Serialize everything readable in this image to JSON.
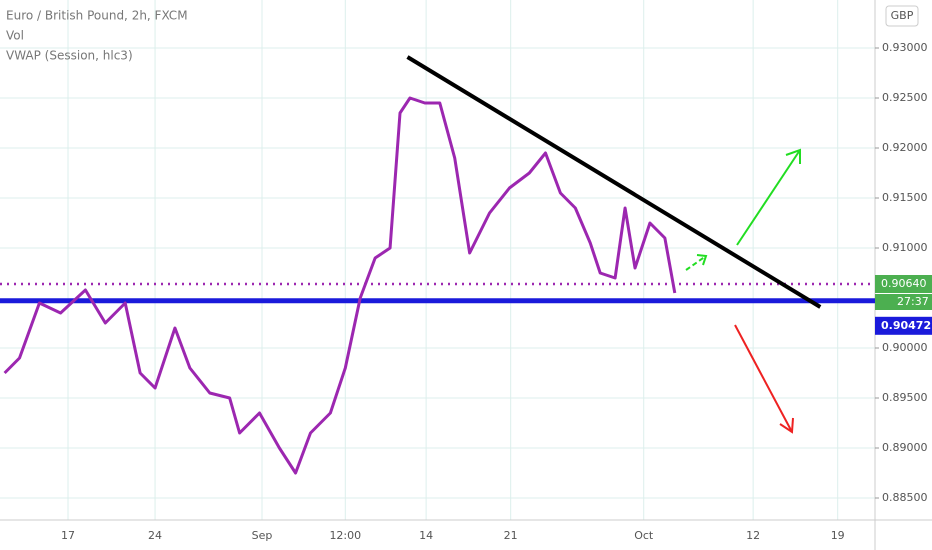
{
  "chart_data": {
    "type": "line",
    "title": "Euro / British Pound, 2h, FXCM",
    "indicators": [
      "Vol",
      "VWAP (Session, hlc3)"
    ],
    "currency": "GBP",
    "x": [
      1.9,
      3.1,
      4.7,
      6.4,
      8.4,
      10.0,
      11.6,
      12.8,
      14.0,
      15.6,
      16.8,
      18.4,
      20.0,
      20.8,
      22.4,
      24.0,
      25.3,
      26.5,
      28.1,
      29.3,
      30.5,
      31.7,
      32.9,
      33.7,
      34.5,
      35.7,
      36.9,
      38.1,
      39.3,
      40.9,
      42.5,
      44.1,
      45.4,
      46.6,
      47.8,
      49.0,
      49.8,
      51.0,
      51.8,
      52.6,
      53.8,
      55.0,
      55.8
    ],
    "series": [
      {
        "name": "VWAP (Session, hlc3)",
        "color": "#9c27b0",
        "values": [
          0.8975,
          0.899,
          0.9045,
          0.9035,
          0.9058,
          0.9025,
          0.9045,
          0.8975,
          0.896,
          0.902,
          0.898,
          0.8955,
          0.895,
          0.8915,
          0.8935,
          0.89,
          0.8875,
          0.8915,
          0.8935,
          0.898,
          0.905,
          0.909,
          0.91,
          0.9235,
          0.925,
          0.9245,
          0.9245,
          0.919,
          0.9095,
          0.9135,
          0.916,
          0.9175,
          0.9195,
          0.9155,
          0.914,
          0.9105,
          0.9075,
          0.907,
          0.914,
          0.908,
          0.9125,
          0.911,
          0.9055
        ]
      }
    ],
    "xlim": [
      1.53,
      71.9
    ],
    "xticks": [
      {
        "value": 7,
        "label": "17"
      },
      {
        "value": 14,
        "label": "24"
      },
      {
        "value": 22.6,
        "label": "Sep"
      },
      {
        "value": 29.3,
        "label": "12:00"
      },
      {
        "value": 35.8,
        "label": "14"
      },
      {
        "value": 42.6,
        "label": "21"
      },
      {
        "value": 53.3,
        "label": "Oct"
      },
      {
        "value": 62.1,
        "label": "12"
      },
      {
        "value": 68.9,
        "label": "19"
      }
    ],
    "ylim": [
      0.8828,
      0.9348
    ],
    "yticks": [
      {
        "value": 0.885,
        "label": "0.88500"
      },
      {
        "value": 0.89,
        "label": "0.89000"
      },
      {
        "value": 0.895,
        "label": "0.89500"
      },
      {
        "value": 0.9,
        "label": "0.90000"
      },
      {
        "value": 0.91,
        "label": "0.91000"
      },
      {
        "value": 0.915,
        "label": "0.91500"
      },
      {
        "value": 0.92,
        "label": "0.92000"
      },
      {
        "value": 0.925,
        "label": "0.92500"
      },
      {
        "value": 0.93,
        "label": "0.93000"
      }
    ],
    "grid": true,
    "support": {
      "value": 0.90472,
      "label": "0.90472",
      "color": "#1a1adb"
    },
    "level": {
      "value": 0.9064,
      "label": "0.90640",
      "color": "#9c27b0"
    },
    "countdown": "27:37",
    "trendline": {
      "x": [
        34.3,
        67.5
      ],
      "values": [
        0.9291,
        0.9041
      ]
    }
  }
}
